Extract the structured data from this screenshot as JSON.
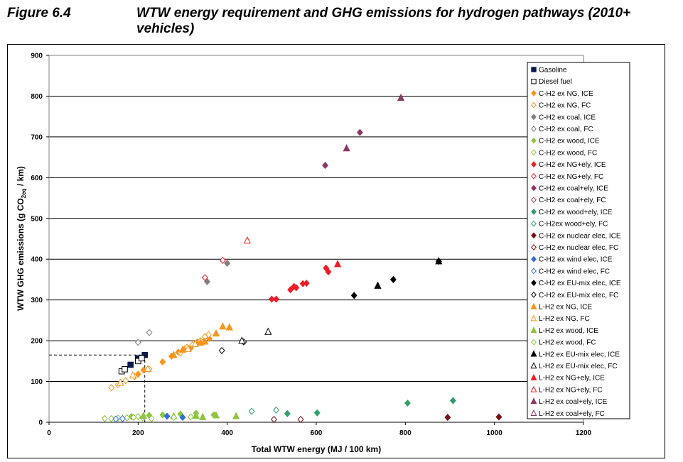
{
  "figure_label": "Figure 6.4",
  "figure_title": "WTW energy requirement and GHG emissions for hydrogen pathways (2010+ vehicles)",
  "chart_data": {
    "type": "scatter",
    "title": "",
    "xlabel": "Total WTW energy (MJ / 100 km)",
    "ylabel_parts": [
      "WTW GHG emissions (g CO",
      "2eq",
      " / km)"
    ],
    "xlim": [
      0,
      1200
    ],
    "ylim": [
      0,
      900
    ],
    "xticks": [
      0,
      200,
      400,
      600,
      800,
      1000,
      1200
    ],
    "yticks": [
      0,
      100,
      200,
      300,
      400,
      500,
      600,
      700,
      800,
      900
    ],
    "grid": "horizontal",
    "legend_position": "right",
    "reference_lines": [
      {
        "x": 215,
        "y": 165,
        "style": "dashed"
      }
    ],
    "series": [
      {
        "name": "Gasoline",
        "marker": "square",
        "color": "#0a1a4a",
        "filled": true,
        "points": [
          [
            183,
            141
          ],
          [
            200,
            157
          ],
          [
            215,
            165
          ]
        ]
      },
      {
        "name": "Diesel fuel",
        "marker": "square",
        "color": "#000000",
        "filled": false,
        "points": [
          [
            163,
            125
          ],
          [
            170,
            130
          ],
          [
            200,
            150
          ],
          [
            208,
            157
          ]
        ]
      },
      {
        "name": "C-H2 ex NG, ICE",
        "marker": "diamond",
        "color": "#f7941d",
        "filled": true,
        "points": [
          [
            200,
            118
          ],
          [
            212,
            128
          ],
          [
            255,
            148
          ],
          [
            275,
            162
          ],
          [
            290,
            172
          ],
          [
            305,
            180
          ],
          [
            318,
            182
          ],
          [
            333,
            197
          ],
          [
            348,
            198
          ],
          [
            360,
            205
          ]
        ]
      },
      {
        "name": "C-H2 ex NG, FC",
        "marker": "diamond",
        "color": "#f7941d",
        "filled": false,
        "points": [
          [
            140,
            85
          ],
          [
            155,
            92
          ],
          [
            172,
            102
          ],
          [
            192,
            112
          ],
          [
            225,
            130
          ],
          [
            295,
            170
          ],
          [
            310,
            184
          ],
          [
            322,
            190
          ],
          [
            340,
            200
          ],
          [
            350,
            210
          ],
          [
            358,
            215
          ]
        ]
      },
      {
        "name": "C-H2 ex coal, ICE",
        "marker": "diamond",
        "color": "#808080",
        "filled": true,
        "points": [
          [
            355,
            345
          ],
          [
            400,
            390
          ]
        ]
      },
      {
        "name": "C-H2 ex coal, FC",
        "marker": "diamond",
        "color": "#808080",
        "filled": false,
        "points": [
          [
            200,
            196
          ],
          [
            225,
            220
          ]
        ]
      },
      {
        "name": "C-H2 ex wood, ICE",
        "marker": "diamond",
        "color": "#8cc63f",
        "filled": true,
        "points": [
          [
            185,
            14
          ],
          [
            225,
            17
          ],
          [
            255,
            18
          ],
          [
            295,
            20
          ],
          [
            330,
            22
          ],
          [
            370,
            18
          ]
        ]
      },
      {
        "name": "C-H2 ex wood, FC",
        "marker": "diamond",
        "color": "#8cc63f",
        "filled": false,
        "points": [
          [
            125,
            9
          ],
          [
            140,
            9
          ],
          [
            155,
            10
          ],
          [
            175,
            11
          ],
          [
            190,
            12
          ],
          [
            210,
            11
          ],
          [
            230,
            9
          ]
        ]
      },
      {
        "name": "C-H2 ex NG+ely, ICE",
        "marker": "diamond",
        "color": "#ee1c24",
        "filled": true,
        "points": [
          [
            500,
            302
          ],
          [
            510,
            302
          ],
          [
            542,
            325
          ],
          [
            550,
            333
          ],
          [
            555,
            330
          ],
          [
            570,
            340
          ],
          [
            578,
            341
          ],
          [
            622,
            378
          ],
          [
            627,
            369
          ]
        ]
      },
      {
        "name": "C-H2 ex NG+ely, FC",
        "marker": "diamond",
        "color": "#ee1c24",
        "filled": false,
        "points": [
          [
            350,
            355
          ],
          [
            390,
            397
          ]
        ]
      },
      {
        "name": "C-H2 ex coal+ely, ICE",
        "marker": "diamond",
        "color": "#8b3a62",
        "filled": true,
        "points": [
          [
            620,
            630
          ],
          [
            698,
            711
          ]
        ]
      },
      {
        "name": "C-H2 ex coal+ely, FC",
        "marker": "diamond",
        "color": "#8b3a62",
        "filled": false,
        "points": []
      },
      {
        "name": "C-H2 ex wood+ely, ICE",
        "marker": "diamond",
        "color": "#2e9e6b",
        "filled": true,
        "points": [
          [
            535,
            21
          ],
          [
            602,
            23
          ],
          [
            805,
            47
          ],
          [
            907,
            53
          ]
        ]
      },
      {
        "name": "C-H2ex wood+ely, FC",
        "marker": "diamond",
        "color": "#2e9e6b",
        "filled": false,
        "points": [
          [
            455,
            27
          ],
          [
            510,
            30
          ]
        ]
      },
      {
        "name": "C-H2 ex nuclear elec, ICE",
        "marker": "diamond",
        "color": "#7b1010",
        "filled": true,
        "points": [
          [
            895,
            12
          ],
          [
            1010,
            13
          ]
        ]
      },
      {
        "name": "C-H2 ex nuclear elec, FC",
        "marker": "diamond",
        "color": "#7b1010",
        "filled": false,
        "points": [
          [
            505,
            7
          ],
          [
            565,
            7
          ]
        ]
      },
      {
        "name": "C-H2 ex wind elec, ICE",
        "marker": "diamond",
        "color": "#2f6fd6",
        "filled": true,
        "points": [
          [
            265,
            15
          ],
          [
            300,
            12
          ]
        ]
      },
      {
        "name": "C-H2 ex wind elec, FC",
        "marker": "diamond",
        "color": "#2f6fd6",
        "filled": false,
        "points": [
          [
            150,
            8
          ],
          [
            165,
            9
          ]
        ]
      },
      {
        "name": "C-H2 ex EU-mix elec, ICE",
        "marker": "diamond",
        "color": "#000000",
        "filled": true,
        "points": [
          [
            685,
            311
          ],
          [
            773,
            350
          ],
          [
            875,
            395
          ]
        ]
      },
      {
        "name": "C-H2 ex EU-mix elec, FC",
        "marker": "diamond",
        "color": "#000000",
        "filled": false,
        "points": [
          [
            388,
            176
          ],
          [
            437,
            197
          ]
        ]
      },
      {
        "name": "L-H2 ex NG, ICE",
        "marker": "triangle",
        "color": "#f7941d",
        "filled": true,
        "points": [
          [
            280,
            165
          ],
          [
            300,
            178
          ],
          [
            340,
            195
          ],
          [
            350,
            198
          ],
          [
            375,
            218
          ],
          [
            390,
            235
          ],
          [
            405,
            233
          ]
        ]
      },
      {
        "name": "L-H2 ex NG, FC",
        "marker": "triangle",
        "color": "#f7941d",
        "filled": false,
        "points": [
          [
            160,
            97
          ],
          [
            188,
            115
          ],
          [
            222,
            131
          ],
          [
            312,
            180
          ],
          [
            328,
            192
          ]
        ]
      },
      {
        "name": "L-H2 ex wood, ICE",
        "marker": "triangle",
        "color": "#8cc63f",
        "filled": true,
        "points": [
          [
            212,
            16
          ],
          [
            280,
            15
          ],
          [
            330,
            16
          ],
          [
            345,
            13
          ],
          [
            375,
            17
          ],
          [
            420,
            15
          ]
        ]
      },
      {
        "name": "L-H2 ex wood, FC",
        "marker": "diamond",
        "color": "#8cc63f",
        "filled": false,
        "points": [
          [
            200,
            14
          ],
          [
            280,
            12
          ],
          [
            318,
            13
          ]
        ]
      },
      {
        "name": "L-H2 ex EU-mix elec, ICE",
        "marker": "triangle",
        "color": "#000000",
        "filled": true,
        "points": [
          [
            738,
            335
          ],
          [
            875,
            395
          ]
        ]
      },
      {
        "name": "L-H2 ex EU-mix elec, FC",
        "marker": "triangle",
        "color": "#000000",
        "filled": false,
        "points": [
          [
            433,
            200
          ],
          [
            492,
            222
          ]
        ]
      },
      {
        "name": "L-H2 ex NG+ely, ICE",
        "marker": "triangle",
        "color": "#ee1c24",
        "filled": true,
        "points": [
          [
            648,
            388
          ]
        ]
      },
      {
        "name": "L-H2 ex NG+ely, FC",
        "marker": "triangle",
        "color": "#ee1c24",
        "filled": false,
        "points": [
          [
            445,
            446
          ]
        ]
      },
      {
        "name": "L-H2 ex coal+ely, ICE",
        "marker": "triangle",
        "color": "#8b3a62",
        "filled": true,
        "points": [
          [
            668,
            672
          ],
          [
            790,
            796
          ]
        ]
      },
      {
        "name": "L-H2 ex coal+ely, FC",
        "marker": "triangle",
        "color": "#8b3a62",
        "filled": false,
        "points": []
      }
    ]
  }
}
